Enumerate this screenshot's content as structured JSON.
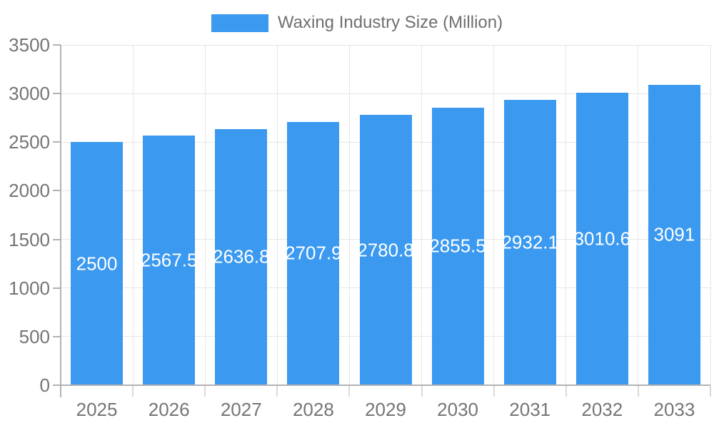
{
  "chart_data": {
    "type": "bar",
    "title": "Waxing Industry Size (Million)",
    "categories": [
      "2025",
      "2026",
      "2027",
      "2028",
      "2029",
      "2030",
      "2031",
      "2032",
      "2033"
    ],
    "series": [
      {
        "name": "Waxing Industry Size (Million)",
        "values": [
          2500,
          2567.5,
          2636.8,
          2707.9,
          2780.8,
          2855.5,
          2932.1,
          3010.6,
          3091
        ]
      }
    ],
    "bar_value_labels": [
      "2500",
      "2567.5",
      "2636.8",
      "2707.9",
      "2780.8",
      "2855.5",
      "2932.1",
      "3010.6",
      "3091"
    ],
    "xlabel": "",
    "ylabel": "",
    "ylim": [
      0,
      3500
    ],
    "ytick_step": 500,
    "ytick_labels": [
      "0",
      "500",
      "1000",
      "1500",
      "2000",
      "2500",
      "3000",
      "3500"
    ],
    "grid": true,
    "legend_position": "top-center",
    "colors": {
      "bar": "#3b99f0",
      "gridline": "#e6e6e6",
      "axis_line": "#b2b2b2",
      "x_tick": "#d9d9d9",
      "tick_label_text": "#757575",
      "legend_text": "#6f6f6f",
      "bar_label_text": "#ffffff",
      "background": "#ffffff"
    }
  }
}
